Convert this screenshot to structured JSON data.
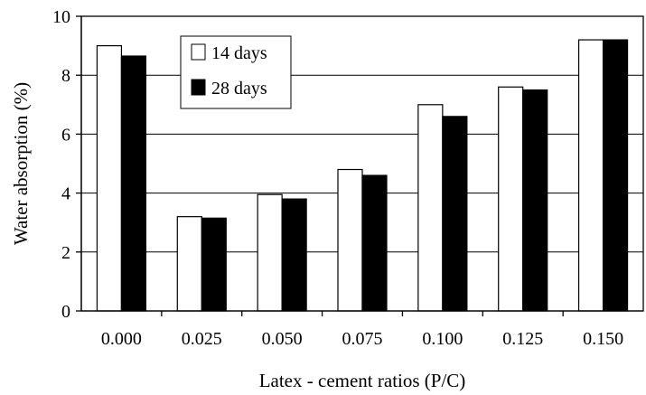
{
  "chart_data": {
    "type": "bar",
    "title": "",
    "xlabel": "Latex - cement ratios (P/C)",
    "ylabel": "Water absorption (%)",
    "categories": [
      "0.000",
      "0.025",
      "0.050",
      "0.075",
      "0.100",
      "0.125",
      "0.150"
    ],
    "series": [
      {
        "name": "14 days",
        "values": [
          9.0,
          3.2,
          3.95,
          4.8,
          7.0,
          7.6,
          9.2
        ],
        "color": "#ffffff"
      },
      {
        "name": "28 days",
        "values": [
          8.65,
          3.15,
          3.8,
          4.6,
          6.6,
          7.5,
          9.2
        ],
        "color": "#000000"
      }
    ],
    "ylim": [
      0,
      10
    ],
    "yticks": [
      "0",
      "2",
      "4",
      "6",
      "8",
      "10"
    ],
    "grid": true,
    "legend_position": "top-left"
  }
}
